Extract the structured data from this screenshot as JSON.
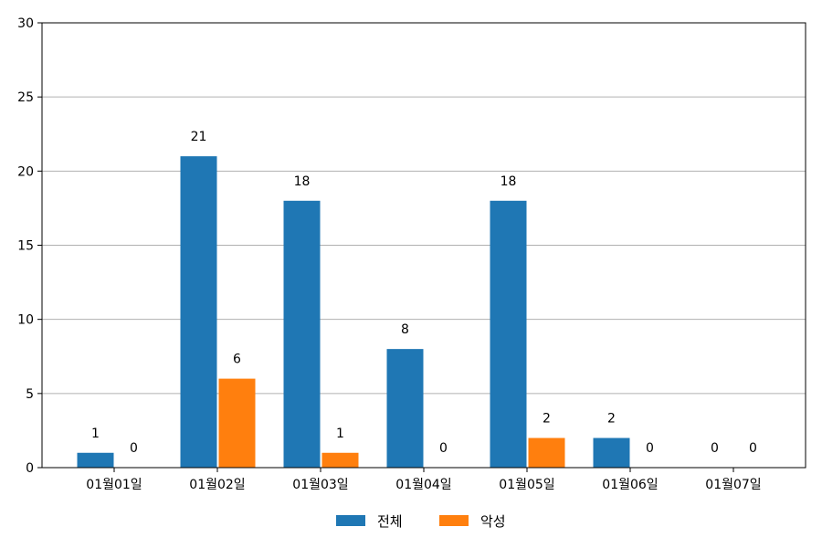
{
  "chart_data": {
    "type": "bar",
    "categories": [
      "01월01일",
      "01월02일",
      "01월03일",
      "01월04일",
      "01월05일",
      "01월06일",
      "01월07일"
    ],
    "series": [
      {
        "name": "전체",
        "color": "#1f77b4",
        "values": [
          1,
          21,
          18,
          8,
          18,
          2,
          0
        ]
      },
      {
        "name": "악성",
        "color": "#ff7f0e",
        "values": [
          0,
          6,
          1,
          0,
          2,
          0,
          0
        ]
      }
    ],
    "ylim": [
      0,
      30
    ],
    "yticks": [
      0,
      5,
      10,
      15,
      20,
      25,
      30
    ],
    "grid": "horizontal",
    "legend_position": "bottom-center",
    "data_labels": true
  }
}
